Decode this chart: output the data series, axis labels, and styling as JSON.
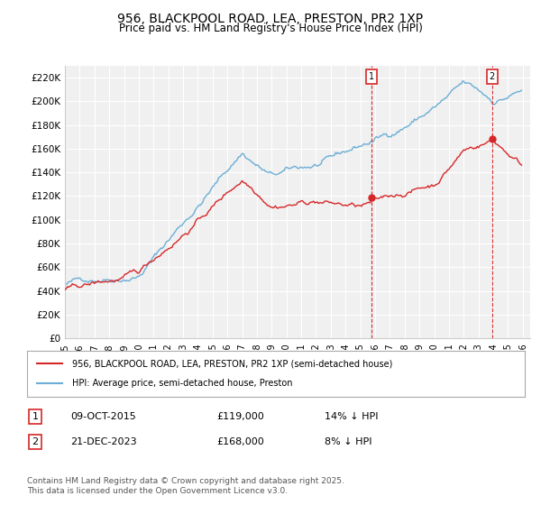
{
  "title_line1": "956, BLACKPOOL ROAD, LEA, PRESTON, PR2 1XP",
  "title_line2": "Price paid vs. HM Land Registry's House Price Index (HPI)",
  "ylabel": "",
  "ylim": [
    0,
    230000
  ],
  "yticks": [
    0,
    20000,
    40000,
    60000,
    80000,
    100000,
    120000,
    140000,
    160000,
    180000,
    200000,
    220000
  ],
  "ytick_labels": [
    "£0",
    "£20K",
    "£40K",
    "£60K",
    "£80K",
    "£100K",
    "£120K",
    "£140K",
    "£160K",
    "£180K",
    "£200K",
    "£220K"
  ],
  "hpi_color": "#6baed6",
  "price_color": "#d62728",
  "marker1_date_idx": 245,
  "marker1_label": "1",
  "marker1_price": 119000,
  "marker2_date_idx": 345,
  "marker2_label": "2",
  "marker2_price": 168000,
  "legend_line1": "956, BLACKPOOL ROAD, LEA, PRESTON, PR2 1XP (semi-detached house)",
  "legend_line2": "HPI: Average price, semi-detached house, Preston",
  "table_row1": [
    "1",
    "09-OCT-2015",
    "£119,000",
    "14% ↓ HPI"
  ],
  "table_row2": [
    "2",
    "21-DEC-2023",
    "£168,000",
    "8% ↓ HPI"
  ],
  "footer": "Contains HM Land Registry data © Crown copyright and database right 2025.\nThis data is licensed under the Open Government Licence v3.0.",
  "background_color": "#ffffff",
  "plot_bg_color": "#f0f0f0",
  "grid_color": "#ffffff"
}
